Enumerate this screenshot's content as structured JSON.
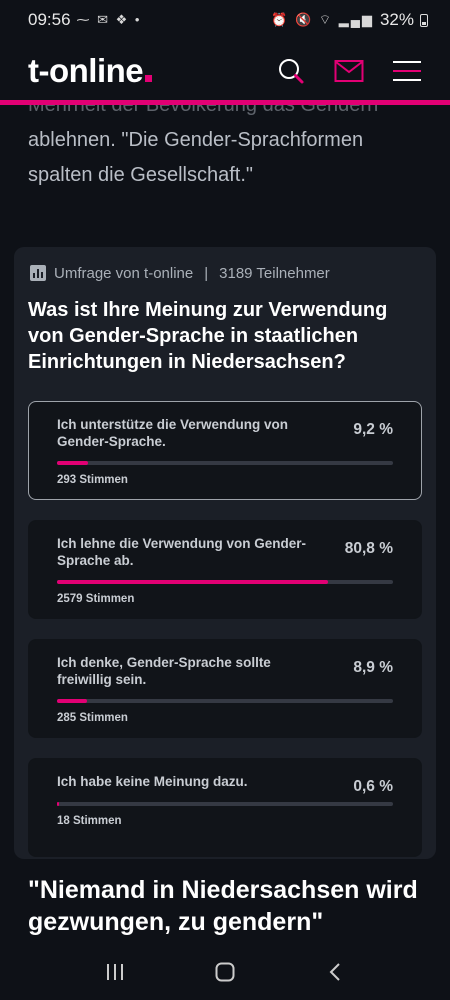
{
  "status_bar": {
    "time": "09:56",
    "left_icons": "⁓ ✉ ❖ •",
    "right_icons": "⏰ 🔇 ⌔ ▂▄▆",
    "battery": "32%"
  },
  "header": {
    "logo": "t-online",
    "icons": [
      "search-icon",
      "mail-icon",
      "menu-icon"
    ]
  },
  "article": {
    "faded_line": "Mehrheit der Bevölkerung das Gendern",
    "text": "ablehnen. \"Die Gender-Sprachformen spalten die Gesellschaft.\""
  },
  "poll": {
    "source": "Umfrage von t-online",
    "participants": "3189 Teilnehmer",
    "question": "Was ist Ihre Meinung zur Verwendung von Gender-Sprache in staatlichen Einrichtungen in Niedersachsen?",
    "options": [
      {
        "label": "Ich unterstütze die Verwendung von Gender-Sprache.",
        "percent_text": "9,2 %",
        "percent": 9.2,
        "votes": "293 Stimmen",
        "selected": true
      },
      {
        "label": "Ich lehne die Verwendung von Gender-Sprache ab.",
        "percent_text": "80,8 %",
        "percent": 80.8,
        "votes": "2579 Stimmen",
        "selected": false
      },
      {
        "label": "Ich denke, Gender-Sprache sollte freiwillig sein.",
        "percent_text": "8,9 %",
        "percent": 8.9,
        "votes": "285 Stimmen",
        "selected": false
      },
      {
        "label": "Ich habe keine Meinung dazu.",
        "percent_text": "0,6 %",
        "percent": 0.6,
        "votes": "18 Stimmen",
        "selected": false
      }
    ]
  },
  "headline": "\"Niemand in Niedersachsen wird gezwungen, zu gendern\"",
  "colors": {
    "accent": "#e20074",
    "background": "#0e1117",
    "card": "#1b1f27"
  },
  "nav_bar": {
    "icons": [
      "recent-apps-icon",
      "home-icon",
      "back-icon"
    ]
  }
}
